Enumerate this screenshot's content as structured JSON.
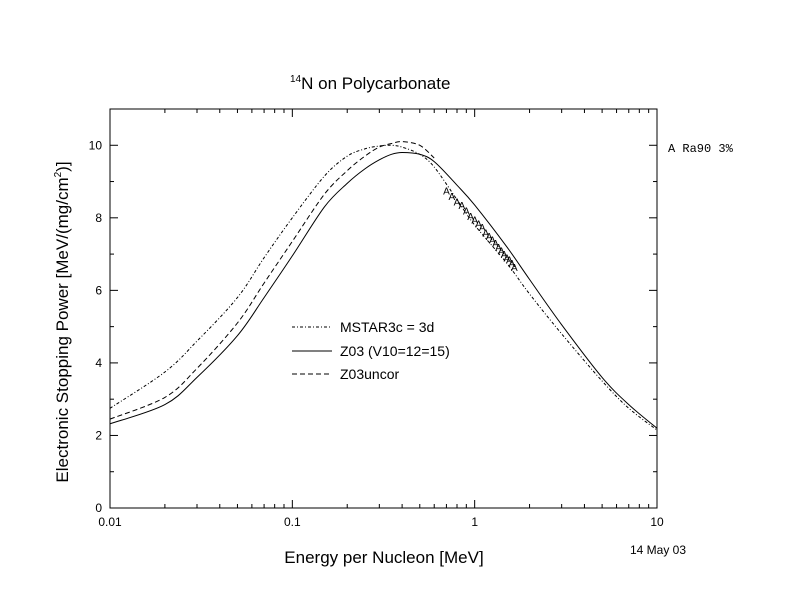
{
  "chart_data": {
    "type": "line",
    "title": {
      "sup": "14",
      "text": "N on Polycarbonate"
    },
    "xlabel": "Energy per Nucleon [MeV]",
    "ylabel": {
      "main": "Electronic Stopping Power [MeV/(mg/cm",
      "sup": "2",
      "tail": ")]"
    },
    "x_scale": "log",
    "xlim": [
      0.01,
      10
    ],
    "ylim": [
      0,
      11
    ],
    "x_ticks": [
      {
        "value": 0.01,
        "label": "0.01"
      },
      {
        "value": 0.1,
        "label": "0.1"
      },
      {
        "value": 1,
        "label": "1"
      },
      {
        "value": 10,
        "label": "10"
      }
    ],
    "y_ticks": [
      {
        "value": 0,
        "label": "0"
      },
      {
        "value": 2,
        "label": "2"
      },
      {
        "value": 4,
        "label": "4"
      },
      {
        "value": 6,
        "label": "6"
      },
      {
        "value": 8,
        "label": "8"
      },
      {
        "value": 10,
        "label": "10"
      }
    ],
    "grid": false,
    "legend_position": "center-left",
    "side_note": "A Ra90 3%",
    "date_note": "14 May 03",
    "series": [
      {
        "name": "MSTAR3c = 3d",
        "style": "dash-dot",
        "x": [
          0.01,
          0.02,
          0.03,
          0.05,
          0.07,
          0.1,
          0.15,
          0.2,
          0.25,
          0.3,
          0.35,
          0.4,
          0.5,
          0.6,
          0.8,
          1.0,
          1.5,
          2,
          3,
          5,
          7,
          10
        ],
        "y": [
          2.75,
          3.75,
          4.6,
          5.8,
          6.9,
          8.0,
          9.15,
          9.7,
          9.9,
          9.98,
          10.0,
          9.95,
          9.75,
          9.4,
          8.5,
          7.8,
          6.75,
          5.9,
          4.8,
          3.5,
          2.75,
          2.15
        ]
      },
      {
        "name": "Z03 (V10=12=15)",
        "style": "solid",
        "x": [
          0.01,
          0.02,
          0.03,
          0.05,
          0.07,
          0.1,
          0.15,
          0.2,
          0.25,
          0.3,
          0.35,
          0.4,
          0.5,
          0.6,
          0.8,
          1.0,
          1.5,
          2,
          3,
          5,
          7,
          10
        ],
        "y": [
          2.32,
          2.85,
          3.6,
          4.75,
          5.8,
          6.95,
          8.3,
          8.95,
          9.35,
          9.6,
          9.75,
          9.8,
          9.75,
          9.55,
          8.9,
          8.35,
          7.2,
          6.3,
          5.05,
          3.6,
          2.85,
          2.2
        ]
      },
      {
        "name": "Z03uncor",
        "style": "dashed",
        "x": [
          0.01,
          0.02,
          0.03,
          0.05,
          0.07,
          0.1,
          0.15,
          0.2,
          0.25,
          0.3,
          0.35,
          0.4,
          0.5,
          0.6
        ],
        "y": [
          2.45,
          3.05,
          3.85,
          5.1,
          6.2,
          7.35,
          8.65,
          9.3,
          9.7,
          9.95,
          10.05,
          10.1,
          10.0,
          9.65
        ]
      }
    ],
    "data_points": {
      "marker": "A",
      "x": [
        0.7,
        0.75,
        0.8,
        0.85,
        0.9,
        0.95,
        1.0,
        1.05,
        1.1,
        1.15,
        1.2,
        1.25,
        1.3,
        1.35,
        1.4,
        1.45,
        1.5,
        1.55,
        1.6,
        1.65
      ],
      "y": [
        8.75,
        8.6,
        8.45,
        8.35,
        8.2,
        8.05,
        7.95,
        7.85,
        7.75,
        7.6,
        7.5,
        7.4,
        7.3,
        7.2,
        7.1,
        7.0,
        6.9,
        6.85,
        6.75,
        6.65
      ]
    }
  }
}
